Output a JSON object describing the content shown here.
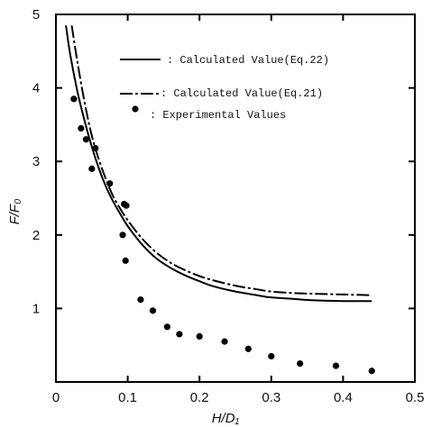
{
  "chart_data": {
    "type": "line",
    "xlabel": "H/D₁",
    "ylabel": "F/F₀",
    "xlim": [
      0,
      0.5
    ],
    "ylim": [
      0,
      5
    ],
    "x_ticks": [
      0,
      0.1,
      0.2,
      0.3,
      0.4,
      0.5
    ],
    "x_tick_labels": [
      "0",
      "0.1",
      "0.2",
      "0.3",
      "0.4",
      "0.5"
    ],
    "y_ticks": [
      1,
      2,
      3,
      4,
      5
    ],
    "y_tick_labels": [
      "1",
      "2",
      "3",
      "4",
      "5"
    ],
    "grid": false,
    "legend_position": "top-right",
    "series": [
      {
        "name": ": Calculated Value(Eq.22)",
        "style": "solid",
        "color": "#000000",
        "x": [
          0.014,
          0.02,
          0.03,
          0.04,
          0.05,
          0.06,
          0.07,
          0.08,
          0.09,
          0.1,
          0.12,
          0.14,
          0.16,
          0.18,
          0.2,
          0.22,
          0.25,
          0.28,
          0.3,
          0.33,
          0.36,
          0.4,
          0.44
        ],
        "y": [
          4.85,
          4.45,
          3.95,
          3.55,
          3.2,
          2.9,
          2.65,
          2.45,
          2.28,
          2.12,
          1.87,
          1.68,
          1.55,
          1.45,
          1.37,
          1.3,
          1.23,
          1.18,
          1.15,
          1.13,
          1.11,
          1.1,
          1.1
        ]
      },
      {
        "name": ": Calculated Value(Eq.21)",
        "style": "dash-dot",
        "color": "#000000",
        "x": [
          0.022,
          0.03,
          0.04,
          0.05,
          0.06,
          0.07,
          0.08,
          0.09,
          0.1,
          0.12,
          0.14,
          0.16,
          0.18,
          0.2,
          0.22,
          0.25,
          0.28,
          0.3,
          0.33,
          0.36,
          0.4,
          0.44
        ],
        "y": [
          4.85,
          4.35,
          3.8,
          3.35,
          3.02,
          2.75,
          2.52,
          2.35,
          2.2,
          1.95,
          1.76,
          1.62,
          1.52,
          1.44,
          1.38,
          1.31,
          1.26,
          1.23,
          1.21,
          1.2,
          1.19,
          1.18
        ]
      },
      {
        "name": ": Experimental Values",
        "style": "markers",
        "color": "#000000",
        "x": [
          0.025,
          0.035,
          0.042,
          0.05,
          0.055,
          0.075,
          0.093,
          0.095,
          0.098,
          0.097,
          0.118,
          0.135,
          0.155,
          0.172,
          0.2,
          0.235,
          0.268,
          0.3,
          0.34,
          0.39,
          0.44
        ],
        "y": [
          3.85,
          3.45,
          3.3,
          2.9,
          3.18,
          2.7,
          2.0,
          2.42,
          2.4,
          1.65,
          1.12,
          0.97,
          0.75,
          0.65,
          0.62,
          0.55,
          0.45,
          0.35,
          0.25,
          0.22,
          0.15
        ]
      }
    ]
  }
}
